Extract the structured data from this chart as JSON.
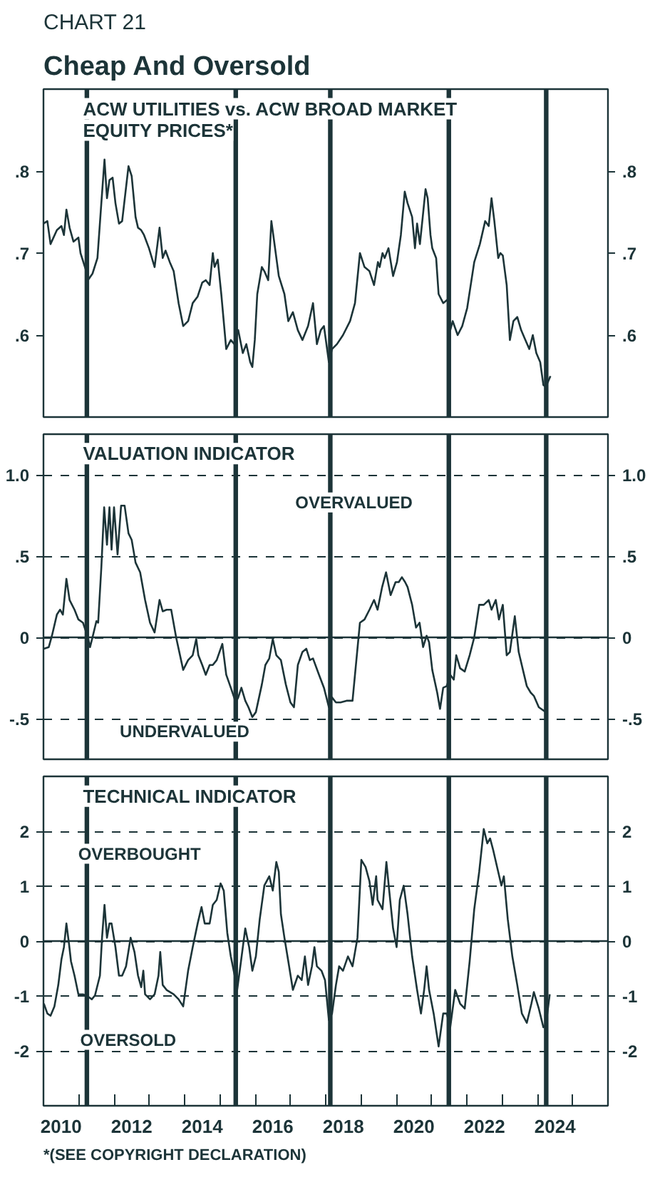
{
  "chart_data": [
    {
      "type": "line",
      "subtitle": "CHART 21",
      "title": "Cheap And Oversold",
      "annotations": [
        "ACW UTILITIES vs. ACW BROAD MARKET\nEQUITY PRICES*"
      ],
      "xlim": [
        2010,
        2026
      ],
      "ylim": [
        0.5,
        0.9
      ],
      "yticks": [
        {
          "value": 0.6,
          "label": ".6"
        },
        {
          "value": 0.7,
          "label": ".7"
        },
        {
          "value": 0.8,
          "label": ".8"
        }
      ],
      "y2lim": [
        0.5,
        0.9
      ],
      "y2ticks": [
        {
          "value": 0.6,
          "label": ".6"
        },
        {
          "value": 0.7,
          "label": ".7"
        },
        {
          "value": 0.8,
          "label": ".8"
        }
      ],
      "tick_labels": "y",
      "color": "#1c3438",
      "ref_lines": [
        {
          "axis": "x",
          "value": 2011.23,
          "color": "#1c3438"
        },
        {
          "axis": "x",
          "value": 2015.45,
          "color": "#1c3438"
        },
        {
          "axis": "x",
          "value": 2018.13,
          "color": "#1c3438"
        },
        {
          "axis": "x",
          "value": 2021.49,
          "color": "#1c3438"
        },
        {
          "axis": "x",
          "value": 2024.25,
          "color": "#1c3438"
        }
      ],
      "x": [
        2010.0,
        2010.11,
        2010.2,
        2010.38,
        2010.51,
        2010.58,
        2010.65,
        2010.74,
        2010.85,
        2010.99,
        2011.05,
        2011.19,
        2011.26,
        2011.39,
        2011.53,
        2011.64,
        2011.73,
        2011.8,
        2011.87,
        2011.96,
        2012.04,
        2012.14,
        2012.23,
        2012.41,
        2012.5,
        2012.61,
        2012.68,
        2012.77,
        2012.85,
        2012.99,
        2013.15,
        2013.29,
        2013.38,
        2013.46,
        2013.58,
        2013.69,
        2013.83,
        2013.96,
        2014.1,
        2014.23,
        2014.37,
        2014.5,
        2014.6,
        2014.71,
        2014.8,
        2014.85,
        2014.94,
        2015.04,
        2015.18,
        2015.31,
        2015.41,
        2015.52,
        2015.65,
        2015.75,
        2015.86,
        2015.92,
        2015.99,
        2016.06,
        2016.19,
        2016.26,
        2016.37,
        2016.46,
        2016.53,
        2016.67,
        2016.83,
        2016.94,
        2017.07,
        2017.21,
        2017.34,
        2017.5,
        2017.64,
        2017.75,
        2017.86,
        2017.95,
        2018.09,
        2018.18,
        2018.32,
        2018.49,
        2018.69,
        2018.83,
        2018.97,
        2019.1,
        2019.24,
        2019.37,
        2019.48,
        2019.53,
        2019.61,
        2019.67,
        2019.78,
        2019.91,
        2020.02,
        2020.13,
        2020.24,
        2020.32,
        2020.45,
        2020.53,
        2020.59,
        2020.67,
        2020.75,
        2020.83,
        2020.89,
        2020.97,
        2021.02,
        2021.13,
        2021.2,
        2021.33,
        2021.47,
        2021.53,
        2021.6,
        2021.74,
        2021.87,
        2022.01,
        2022.21,
        2022.37,
        2022.52,
        2022.62,
        2022.7,
        2022.78,
        2022.89,
        2022.95,
        2023.02,
        2023.13,
        2023.22,
        2023.32,
        2023.43,
        2023.54,
        2023.63,
        2023.77,
        2023.87,
        2023.97,
        2024.08,
        2024.17,
        2024.24,
        2024.37
      ],
      "values": [
        0.736,
        0.739,
        0.711,
        0.728,
        0.733,
        0.722,
        0.753,
        0.731,
        0.714,
        0.719,
        0.7,
        0.681,
        0.667,
        0.675,
        0.694,
        0.761,
        0.814,
        0.767,
        0.789,
        0.792,
        0.761,
        0.736,
        0.739,
        0.806,
        0.794,
        0.744,
        0.731,
        0.728,
        0.722,
        0.706,
        0.683,
        0.731,
        0.694,
        0.703,
        0.689,
        0.678,
        0.639,
        0.611,
        0.617,
        0.639,
        0.647,
        0.664,
        0.667,
        0.661,
        0.7,
        0.683,
        0.692,
        0.65,
        0.583,
        0.594,
        0.589,
        0.606,
        0.578,
        0.589,
        0.567,
        0.561,
        0.594,
        0.65,
        0.683,
        0.678,
        0.667,
        0.739,
        0.717,
        0.672,
        0.65,
        0.617,
        0.628,
        0.606,
        0.594,
        0.611,
        0.639,
        0.589,
        0.606,
        0.611,
        0.567,
        0.583,
        0.589,
        0.6,
        0.617,
        0.639,
        0.7,
        0.683,
        0.678,
        0.661,
        0.689,
        0.683,
        0.7,
        0.694,
        0.706,
        0.672,
        0.689,
        0.722,
        0.775,
        0.761,
        0.744,
        0.706,
        0.736,
        0.711,
        0.744,
        0.778,
        0.767,
        0.722,
        0.706,
        0.694,
        0.65,
        0.639,
        0.644,
        0.606,
        0.617,
        0.6,
        0.611,
        0.633,
        0.689,
        0.711,
        0.739,
        0.733,
        0.767,
        0.739,
        0.694,
        0.7,
        0.697,
        0.661,
        0.594,
        0.617,
        0.622,
        0.606,
        0.597,
        0.583,
        0.6,
        0.578,
        0.567,
        0.539,
        0.537,
        0.55
      ]
    },
    {
      "type": "line",
      "title": "VALUATION INDICATOR",
      "annotations": [
        "OVERVALUED",
        "UNDERVALUED"
      ],
      "xlim": [
        2010,
        2026
      ],
      "ylim": [
        -0.75,
        1.25
      ],
      "yticks": [
        {
          "value": -0.5,
          "label": "-.5"
        },
        0,
        {
          "value": 0.5,
          "label": ".5"
        },
        {
          "value": 1,
          "label": "1.0"
        }
      ],
      "y2lim": [
        -0.75,
        1.25
      ],
      "y2ticks": [
        {
          "value": -0.5,
          "label": "-.5"
        },
        0,
        {
          "value": 0.5,
          "label": ".5"
        },
        {
          "value": 1,
          "label": "1.0"
        }
      ],
      "tick_labels": "y",
      "grid": "y",
      "color": "#1c3438",
      "ref_lines": [
        {
          "axis": "y",
          "value": 0,
          "color": "#1c3438"
        },
        {
          "axis": "x",
          "value": 2011.23,
          "color": "#1c3438"
        },
        {
          "axis": "x",
          "value": 2015.45,
          "color": "#1c3438"
        },
        {
          "axis": "x",
          "value": 2018.13,
          "color": "#1c3438"
        },
        {
          "axis": "x",
          "value": 2021.49,
          "color": "#1c3438"
        },
        {
          "axis": "x",
          "value": 2024.25,
          "color": "#1c3438"
        }
      ],
      "x": [
        2010.01,
        2010.15,
        2010.24,
        2010.38,
        2010.47,
        2010.55,
        2010.65,
        2010.74,
        2010.88,
        2010.99,
        2011.12,
        2011.26,
        2011.32,
        2011.39,
        2011.5,
        2011.55,
        2011.64,
        2011.72,
        2011.8,
        2011.87,
        2011.93,
        2012.0,
        2012.1,
        2012.2,
        2012.3,
        2012.41,
        2012.5,
        2012.61,
        2012.74,
        2012.88,
        2013.02,
        2013.15,
        2013.29,
        2013.38,
        2013.49,
        2013.62,
        2013.76,
        2013.96,
        2014.1,
        2014.23,
        2014.33,
        2014.39,
        2014.5,
        2014.6,
        2014.71,
        2014.8,
        2014.91,
        2015.07,
        2015.18,
        2015.31,
        2015.45,
        2015.52,
        2015.61,
        2015.72,
        2015.81,
        2015.92,
        2016.02,
        2016.19,
        2016.29,
        2016.4,
        2016.5,
        2016.6,
        2016.73,
        2016.87,
        2017.0,
        2017.1,
        2017.21,
        2017.34,
        2017.45,
        2017.55,
        2017.64,
        2017.81,
        2017.95,
        2018.09,
        2018.18,
        2018.29,
        2018.42,
        2018.59,
        2018.76,
        2018.97,
        2019.1,
        2019.24,
        2019.37,
        2019.47,
        2019.6,
        2019.71,
        2019.84,
        2019.98,
        2020.07,
        2020.16,
        2020.25,
        2020.32,
        2020.45,
        2020.56,
        2020.66,
        2020.76,
        2020.86,
        2020.93,
        2021.02,
        2021.16,
        2021.24,
        2021.33,
        2021.43,
        2021.53,
        2021.63,
        2021.7,
        2021.81,
        2021.94,
        2022.08,
        2022.21,
        2022.35,
        2022.48,
        2022.62,
        2022.7,
        2022.82,
        2022.91,
        2023.02,
        2023.13,
        2023.22,
        2023.36,
        2023.47,
        2023.59,
        2023.7,
        2023.81,
        2023.9,
        2024.04,
        2024.24
      ],
      "values": [
        -0.07,
        -0.06,
        0.01,
        0.14,
        0.17,
        0.14,
        0.36,
        0.23,
        0.17,
        0.11,
        0.09,
        0,
        -0.06,
        0,
        0.1,
        0.09,
        0.43,
        0.8,
        0.57,
        0.8,
        0.54,
        0.8,
        0.51,
        0.81,
        0.81,
        0.64,
        0.6,
        0.46,
        0.4,
        0.23,
        0.09,
        0.03,
        0.23,
        0.16,
        0.17,
        0.17,
        0,
        -0.2,
        -0.14,
        -0.11,
        -0.01,
        -0.11,
        -0.17,
        -0.23,
        -0.17,
        -0.17,
        -0.14,
        -0.04,
        -0.23,
        -0.31,
        -0.4,
        -0.37,
        -0.31,
        -0.39,
        -0.43,
        -0.49,
        -0.46,
        -0.29,
        -0.17,
        -0.13,
        -0.01,
        -0.11,
        -0.14,
        -0.29,
        -0.4,
        -0.43,
        -0.17,
        -0.09,
        -0.07,
        -0.14,
        -0.13,
        -0.23,
        -0.31,
        -0.43,
        -0.37,
        -0.4,
        -0.4,
        -0.39,
        -0.39,
        0.09,
        0.11,
        0.17,
        0.23,
        0.17,
        0.31,
        0.4,
        0.26,
        0.34,
        0.34,
        0.37,
        0.34,
        0.31,
        0.2,
        0.06,
        0.09,
        -0.06,
        0.01,
        -0.03,
        -0.2,
        -0.34,
        -0.44,
        -0.31,
        -0.3,
        -0.23,
        -0.26,
        -0.11,
        -0.19,
        -0.21,
        -0.11,
        0,
        0.2,
        0.2,
        0.23,
        0.17,
        0.23,
        0.11,
        0.2,
        -0.11,
        -0.09,
        0.13,
        -0.09,
        -0.2,
        -0.3,
        -0.34,
        -0.36,
        -0.43,
        -0.46
      ]
    },
    {
      "type": "line",
      "title": "TECHNICAL INDICATOR",
      "annotations": [
        "OVERBOUGHT",
        "OVERSOLD",
        "*(SEE COPYRIGHT DECLARATION)"
      ],
      "xlim": [
        2010,
        2026
      ],
      "ylim": [
        -3,
        3
      ],
      "xticks": [
        {
          "value": 2010.5,
          "label": "2010"
        },
        {
          "value": 2011,
          "label": null
        },
        {
          "value": 2012,
          "label": null
        },
        {
          "value": 2012.5,
          "label": "2012"
        },
        {
          "value": 2013,
          "label": null
        },
        {
          "value": 2014,
          "label": null
        },
        {
          "value": 2014.5,
          "label": "2014"
        },
        {
          "value": 2015,
          "label": null
        },
        {
          "value": 2016,
          "label": null
        },
        {
          "value": 2016.5,
          "label": "2016"
        },
        {
          "value": 2017,
          "label": null
        },
        {
          "value": 2018,
          "label": null
        },
        {
          "value": 2018.5,
          "label": "2018"
        },
        {
          "value": 2019,
          "label": null
        },
        {
          "value": 2020,
          "label": null
        },
        {
          "value": 2020.5,
          "label": "2020"
        },
        {
          "value": 2021,
          "label": null
        },
        {
          "value": 2022,
          "label": null
        },
        {
          "value": 2022.5,
          "label": "2022"
        },
        {
          "value": 2023,
          "label": null
        },
        {
          "value": 2024,
          "label": null
        },
        {
          "value": 2024.5,
          "label": "2024"
        },
        {
          "value": 2025,
          "label": null
        }
      ],
      "yticks": [
        -2,
        -1,
        0,
        1,
        2
      ],
      "y2lim": [
        -3,
        3
      ],
      "y2ticks": [
        -2,
        -1,
        0,
        1,
        2
      ],
      "grid": "y",
      "color": "#1c3438",
      "ref_lines": [
        {
          "axis": "y",
          "value": 0,
          "color": "#1c3438"
        },
        {
          "axis": "x",
          "value": 2011.23,
          "color": "#1c3438"
        },
        {
          "axis": "x",
          "value": 2015.45,
          "color": "#1c3438"
        },
        {
          "axis": "x",
          "value": 2018.13,
          "color": "#1c3438"
        },
        {
          "axis": "x",
          "value": 2021.49,
          "color": "#1c3438"
        },
        {
          "axis": "x",
          "value": 2024.25,
          "color": "#1c3438"
        }
      ],
      "x": [
        2010.01,
        2010.11,
        2010.2,
        2010.31,
        2010.42,
        2010.51,
        2010.58,
        2010.65,
        2010.72,
        2010.78,
        2010.88,
        2010.99,
        2011.12,
        2011.26,
        2011.37,
        2011.46,
        2011.6,
        2011.66,
        2011.73,
        2011.8,
        2011.87,
        2011.93,
        2012.04,
        2012.14,
        2012.23,
        2012.34,
        2012.47,
        2012.58,
        2012.68,
        2012.77,
        2012.83,
        2012.88,
        2013.02,
        2013.15,
        2013.26,
        2013.31,
        2013.38,
        2013.49,
        2013.69,
        2013.83,
        2013.96,
        2014.1,
        2014.23,
        2014.37,
        2014.48,
        2014.57,
        2014.71,
        2014.8,
        2014.91,
        2015.02,
        2015.11,
        2015.21,
        2015.31,
        2015.42,
        2015.49,
        2015.58,
        2015.72,
        2015.83,
        2015.92,
        2016.02,
        2016.13,
        2016.26,
        2016.4,
        2016.5,
        2016.6,
        2016.67,
        2016.73,
        2016.83,
        2016.94,
        2017.07,
        2017.21,
        2017.32,
        2017.41,
        2017.5,
        2017.61,
        2017.68,
        2017.75,
        2017.88,
        2017.98,
        2018.09,
        2018.18,
        2018.29,
        2018.38,
        2018.49,
        2018.63,
        2018.76,
        2018.9,
        2019.01,
        2019.13,
        2019.24,
        2019.33,
        2019.43,
        2019.47,
        2019.61,
        2019.72,
        2019.8,
        2019.91,
        2020.01,
        2020.1,
        2020.21,
        2020.32,
        2020.45,
        2020.59,
        2020.7,
        2020.79,
        2020.86,
        2020.93,
        2021.06,
        2021.2,
        2021.33,
        2021.43,
        2021.53,
        2021.67,
        2021.81,
        2021.94,
        2022.08,
        2022.21,
        2022.35,
        2022.48,
        2022.58,
        2022.66,
        2022.75,
        2022.89,
        2022.98,
        2023.05,
        2023.16,
        2023.29,
        2023.43,
        2023.56,
        2023.7,
        2023.83,
        2023.9,
        2024.04,
        2024.17,
        2024.24,
        2024.35
      ],
      "values": [
        -1.14,
        -1.32,
        -1.36,
        -1.19,
        -0.8,
        -0.33,
        -0.11,
        0.32,
        -0.03,
        -0.37,
        -0.63,
        -0.97,
        -0.97,
        -1.01,
        -1.06,
        -0.99,
        -0.63,
        0.06,
        0.66,
        0.06,
        0.32,
        0.32,
        -0.11,
        -0.63,
        -0.63,
        -0.46,
        0.06,
        -0.2,
        -0.63,
        -0.84,
        -0.54,
        -0.97,
        -1.06,
        -0.97,
        -0.63,
        -0.2,
        -0.8,
        -0.89,
        -0.97,
        -1.06,
        -1.19,
        -0.54,
        -0.11,
        0.32,
        0.62,
        0.32,
        0.32,
        0.66,
        0.75,
        1.05,
        0.92,
        0.15,
        -0.28,
        -0.63,
        -0.89,
        -0.46,
        0.23,
        -0.11,
        -0.54,
        -0.28,
        0.4,
        1.01,
        1.18,
        0.92,
        1.44,
        1.26,
        0.49,
        0.06,
        -0.37,
        -0.89,
        -0.63,
        -0.71,
        -0.28,
        -0.8,
        -0.46,
        -0.11,
        -0.46,
        -0.54,
        -0.71,
        -1.44,
        -1.32,
        -0.8,
        -0.46,
        -0.54,
        -0.28,
        -0.46,
        0.06,
        1.48,
        1.35,
        1.09,
        0.66,
        1.18,
        0.75,
        0.58,
        1.44,
        0.92,
        0.23,
        -0.11,
        0.75,
        1.01,
        0.49,
        -0.28,
        -0.89,
        -1.32,
        -0.89,
        -0.46,
        -0.89,
        -1.32,
        -1.92,
        -1.32,
        -1.32,
        -1.57,
        -0.89,
        -1.14,
        -1.23,
        -0.37,
        0.58,
        1.26,
        2.04,
        1.78,
        1.87,
        1.65,
        1.26,
        1.01,
        1.18,
        0.4,
        -0.28,
        -0.8,
        -1.32,
        -1.49,
        -1.14,
        -0.93,
        -1.23,
        -1.57,
        -1.53,
        -0.97
      ]
    }
  ]
}
